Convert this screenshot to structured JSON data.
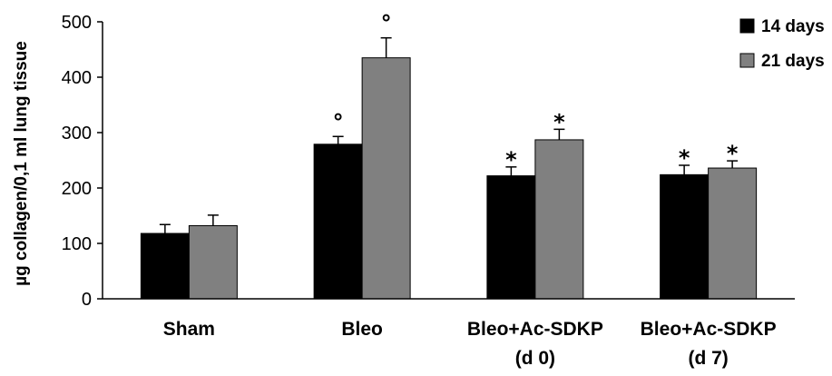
{
  "chart_data": {
    "type": "bar",
    "categories": [
      [
        "Sham"
      ],
      [
        "Bleo"
      ],
      [
        "Bleo+Ac-SDKP",
        "(d 0)"
      ],
      [
        "Bleo+Ac-SDKP",
        "(d 7)"
      ]
    ],
    "series": [
      {
        "name": "14 days",
        "color": "#000000",
        "values": [
          118,
          279,
          222,
          224
        ],
        "errors": [
          16,
          14,
          16,
          17
        ],
        "marks": [
          "",
          "°",
          "*",
          "*"
        ]
      },
      {
        "name": "21 days",
        "color": "#808080",
        "values": [
          132,
          435,
          287,
          236
        ],
        "errors": [
          19,
          36,
          19,
          13
        ],
        "marks": [
          "",
          "°",
          "*",
          "*"
        ]
      }
    ],
    "ylabel": "µg collagen/0,1 ml lung tissue",
    "ylim": [
      0,
      500
    ],
    "yticks": [
      0,
      100,
      200,
      300,
      400,
      500
    ],
    "grid": false,
    "legend_position": "top-right"
  }
}
